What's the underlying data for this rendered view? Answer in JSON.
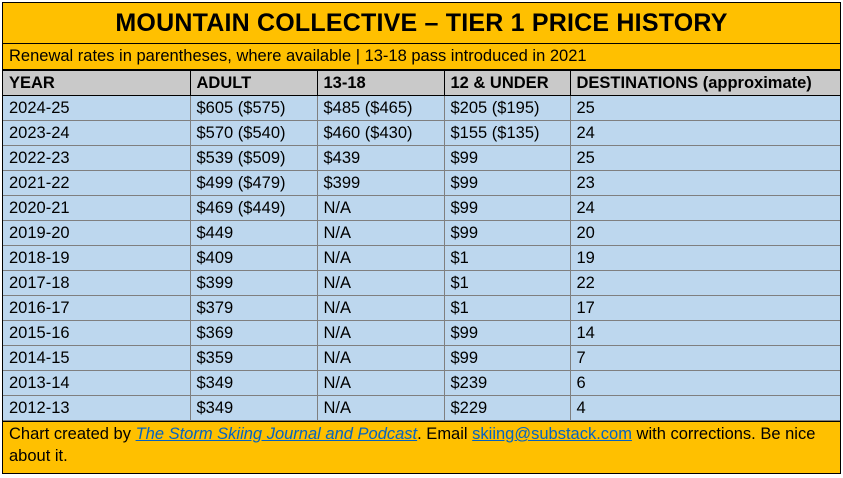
{
  "title": "MOUNTAIN COLLECTIVE – TIER 1 PRICE HISTORY",
  "subtitle": "Renewal rates in parentheses, where available | 13-18 pass introduced in 2021",
  "columns": [
    "YEAR",
    "ADULT",
    "13-18",
    "12 & UNDER",
    "DESTINATIONS (approximate)"
  ],
  "rows": [
    [
      "2024-25",
      "$605 ($575)",
      "$485 ($465)",
      "$205 ($195)",
      "25"
    ],
    [
      "2023-24",
      "$570 ($540)",
      "$460 ($430)",
      "$155 ($135)",
      "24"
    ],
    [
      "2022-23",
      "$539 ($509)",
      "$439",
      "$99",
      "25"
    ],
    [
      "2021-22",
      "$499 ($479)",
      "$399",
      "$99",
      "23"
    ],
    [
      "2020-21",
      "$469 ($449)",
      "N/A",
      "$99",
      "24"
    ],
    [
      "2019-20",
      "$449",
      "N/A",
      "$99",
      "20"
    ],
    [
      "2018-19",
      "$409",
      "N/A",
      "$1",
      "19"
    ],
    [
      "2017-18",
      "$399",
      "N/A",
      "$1",
      "22"
    ],
    [
      "2016-17",
      "$379",
      "N/A",
      "$1",
      "17"
    ],
    [
      "2015-16",
      "$369",
      "N/A",
      "$99",
      "14"
    ],
    [
      "2014-15",
      "$359",
      "N/A",
      "$99",
      "7"
    ],
    [
      "2013-14",
      "$349",
      "N/A",
      "$239",
      "6"
    ],
    [
      "2012-13",
      "$349",
      "N/A",
      "$229",
      "4"
    ]
  ],
  "footer": {
    "prefix": "Chart created by ",
    "link_text": "The Storm Skiing Journal and Podcast",
    "middle": ". Email ",
    "email": "skiing@substack.com",
    "suffix": " with corrections. Be nice about it."
  },
  "colors": {
    "header_band": "#ffc000",
    "column_header": "#c9c9c9",
    "row_fill": "#bdd7ee",
    "link": "#0563c1"
  }
}
